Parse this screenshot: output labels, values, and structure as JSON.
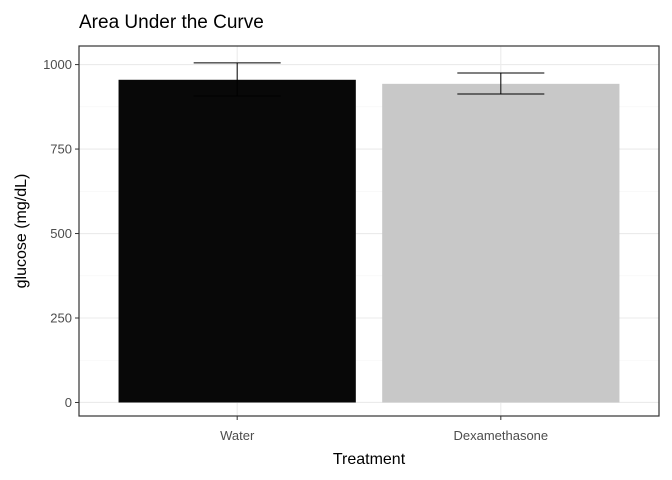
{
  "chart_data": {
    "type": "bar",
    "title": "Area Under the Curve",
    "xlabel": "Treatment",
    "ylabel": "glucose (mg/dL)",
    "categories": [
      "Water",
      "Dexamethasone"
    ],
    "values": [
      955,
      943
    ],
    "error_upper": [
      1005,
      975
    ],
    "error_lower": [
      907,
      913
    ],
    "colors": [
      "#080808",
      "#c8c8c8"
    ],
    "ylim": [
      -40,
      1055
    ],
    "yticks": [
      0,
      250,
      500,
      750,
      1000
    ],
    "ytick_labels": [
      "0",
      "250",
      "500",
      "750",
      "1000"
    ],
    "grid": true,
    "legend": "none"
  }
}
